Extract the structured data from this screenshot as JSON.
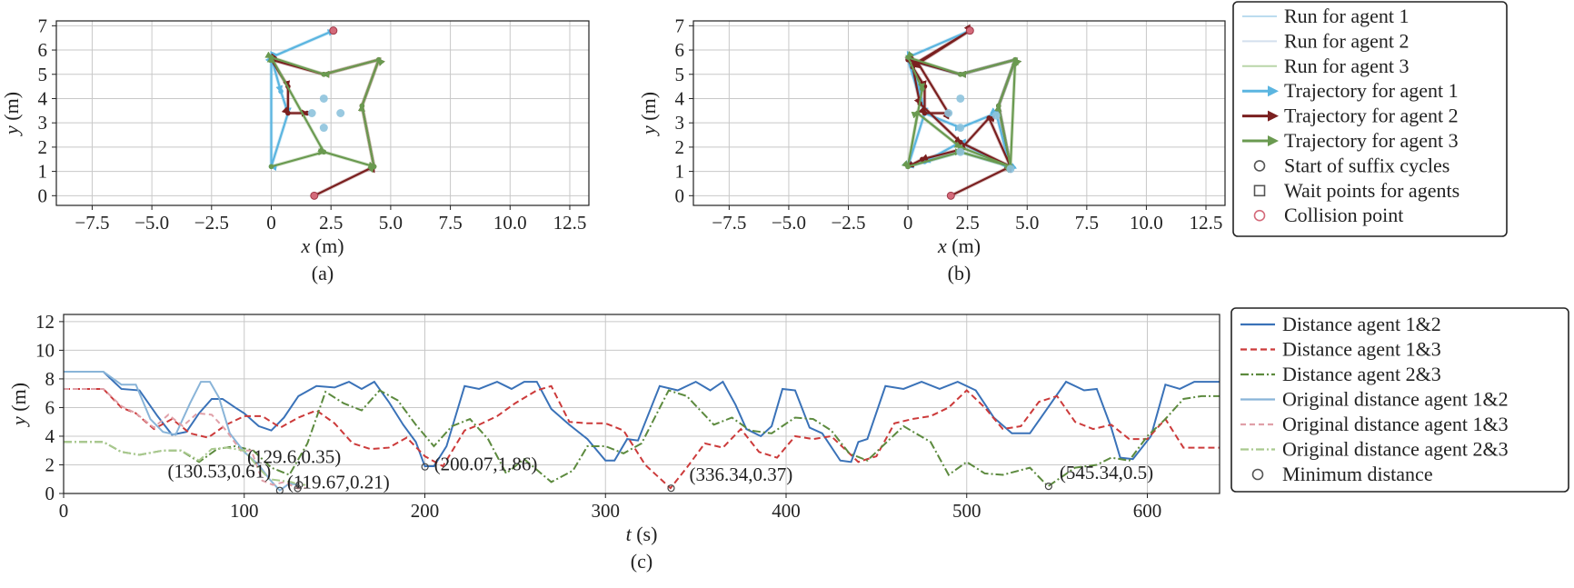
{
  "chart_data": [
    {
      "type": "line",
      "panel_label": "(a)",
      "xlabel_var": "x",
      "xlabel_unit": " (m)",
      "ylabel_var": "y",
      "ylabel_unit": " (m)",
      "xlim": [
        -9,
        13.3
      ],
      "ylim": [
        -0.4,
        7.2
      ],
      "xticks": [
        -7.5,
        -5.0,
        -2.5,
        0,
        2.5,
        5.0,
        7.5,
        10.0,
        12.5
      ],
      "xtick_labels": [
        "−7.5",
        "−5.0",
        "−2.5",
        "0",
        "2.5",
        "5.0",
        "7.5",
        "10.0",
        "12.5"
      ],
      "yticks": [
        0,
        1,
        2,
        3,
        4,
        5,
        6,
        7
      ],
      "ytick_labels": [
        "0",
        "1",
        "2",
        "3",
        "4",
        "5",
        "6",
        "7"
      ],
      "grid": true,
      "series": [
        {
          "color": "#5bb5e0",
          "x": [
            2.6,
            0,
            0.4,
            0.7,
            0,
            0,
            2.6
          ],
          "y": [
            6.8,
            5.7,
            4.3,
            3.4,
            1.2,
            5.7,
            6.8
          ]
        },
        {
          "color": "#7a1f1f",
          "x": [
            1.8,
            4.3,
            3.8,
            4.5,
            2.2,
            0,
            0.7,
            0.7,
            1.5
          ],
          "y": [
            0,
            1.2,
            3.7,
            5.6,
            5.0,
            5.6,
            4.5,
            3.4,
            3.4
          ]
        },
        {
          "color": "#6a9a50",
          "x": [
            0,
            2.2,
            4.3,
            3.8,
            4.5,
            2.2,
            0,
            0,
            2.2,
            4.3
          ],
          "y": [
            1.2,
            1.8,
            1.2,
            3.7,
            5.6,
            5.0,
            5.7,
            5.7,
            1.8,
            1.2
          ]
        }
      ],
      "markers": [
        {
          "kind": "wait",
          "color": "#8ec3dd",
          "x": [
            2.2,
            1.7,
            2.9,
            2.2
          ],
          "y": [
            4.0,
            3.4,
            3.4,
            2.8
          ]
        },
        {
          "kind": "collision",
          "color": "#d46a7a",
          "x": [
            2.6,
            1.8
          ],
          "y": [
            6.8,
            0
          ]
        }
      ]
    },
    {
      "type": "line",
      "panel_label": "(b)",
      "xlabel_var": "x",
      "xlabel_unit": " (m)",
      "ylabel_var": "y",
      "ylabel_unit": " (m)",
      "xlim": [
        -9,
        13.3
      ],
      "ylim": [
        -0.4,
        7.2
      ],
      "xticks": [
        -7.5,
        -5.0,
        -2.5,
        0,
        2.5,
        5.0,
        7.5,
        10.0,
        12.5
      ],
      "xtick_labels": [
        "−7.5",
        "−5.0",
        "−2.5",
        "0",
        "2.5",
        "5.0",
        "7.5",
        "10.0",
        "12.5"
      ],
      "yticks": [
        0,
        1,
        2,
        3,
        4,
        5,
        6,
        7
      ],
      "ytick_labels": [
        "0",
        "1",
        "2",
        "3",
        "4",
        "5",
        "6",
        "7"
      ],
      "grid": true,
      "series": [
        {
          "color": "#5bb5e0",
          "x": [
            2.6,
            0,
            0.5,
            0.7,
            0,
            2.2,
            4.3,
            3.8,
            4.5,
            2.2,
            0,
            0.7,
            2.2,
            3.7,
            4.3,
            2.2,
            0.7,
            0
          ],
          "y": [
            6.8,
            5.7,
            4.3,
            3.4,
            1.2,
            1.8,
            1.2,
            3.7,
            5.6,
            5.0,
            5.6,
            3.4,
            2.8,
            3.4,
            1.1,
            2.2,
            1.4,
            1.2
          ]
        },
        {
          "color": "#7a1f1f",
          "x": [
            1.8,
            4.3,
            3.8,
            4.5,
            2.2,
            0,
            0.7,
            0.7,
            1.7,
            0.4,
            2.6,
            0.2,
            0.5,
            2.2,
            4.3,
            3.4,
            2.2,
            0.6,
            0
          ],
          "y": [
            0,
            1.2,
            3.7,
            5.6,
            5.0,
            5.6,
            4.5,
            3.4,
            3.4,
            5.5,
            6.8,
            5.3,
            3.8,
            2.2,
            1.2,
            3.2,
            1.9,
            1.5,
            1.2
          ]
        },
        {
          "color": "#6a9a50",
          "x": [
            0,
            0.4,
            2.2,
            4.3,
            3.8,
            4.5,
            2.2,
            0,
            0.6,
            0,
            2.2,
            4.3,
            4.5
          ],
          "y": [
            1.2,
            3.4,
            2.0,
            1.2,
            3.7,
            5.6,
            5.0,
            5.7,
            4.4,
            1.2,
            1.8,
            1.2,
            5.6
          ]
        }
      ],
      "markers": [
        {
          "kind": "wait",
          "color": "#8ec3dd",
          "x": [
            2.2,
            1.7,
            2.2,
            3.7,
            4.3,
            2.2
          ],
          "y": [
            4.0,
            3.4,
            2.8,
            3.3,
            1.1,
            1.8
          ]
        },
        {
          "kind": "collision",
          "color": "#d46a7a",
          "x": [
            2.6,
            1.8
          ],
          "y": [
            6.8,
            0
          ]
        }
      ]
    },
    {
      "type": "line",
      "panel_label": "(c)",
      "xlabel_var": "t",
      "xlabel_unit": " (s)",
      "ylabel_var": "y",
      "ylabel_unit": " (m)",
      "xlim": [
        0,
        640
      ],
      "ylim": [
        0,
        12.5
      ],
      "xticks": [
        0,
        100,
        200,
        300,
        400,
        500,
        600
      ],
      "xtick_labels": [
        "0",
        "100",
        "200",
        "300",
        "400",
        "500",
        "600"
      ],
      "yticks": [
        0,
        2,
        4,
        6,
        8,
        10,
        12
      ],
      "ytick_labels": [
        "0",
        "2",
        "4",
        "6",
        "8",
        "10",
        "12"
      ],
      "grid": true,
      "series": [
        {
          "name": "Distance agent 1&2",
          "color": "#3a72b8",
          "dash": "",
          "x": [
            0,
            22,
            32,
            42,
            52,
            60,
            68,
            75,
            82,
            88,
            95,
            100,
            108,
            115,
            122,
            130,
            140,
            150,
            158,
            165,
            172,
            180,
            188,
            195,
            200,
            205,
            212,
            222,
            230,
            240,
            248,
            255,
            262,
            270,
            280,
            290,
            300,
            305,
            312,
            318,
            330,
            340,
            350,
            358,
            365,
            372,
            378,
            386,
            392,
            398,
            405,
            413,
            420,
            430,
            436,
            440,
            445,
            455,
            465,
            475,
            485,
            495,
            505,
            515,
            525,
            535,
            545,
            555,
            565,
            572,
            580,
            585,
            592,
            602,
            610,
            618,
            626,
            640
          ],
          "y": [
            8.5,
            8.5,
            7.3,
            7.2,
            5.4,
            4.1,
            4.3,
            5.6,
            6.6,
            6.6,
            6.0,
            5.6,
            4.7,
            4.4,
            5.3,
            6.8,
            7.5,
            7.4,
            7.8,
            7.3,
            7.8,
            6.4,
            4.8,
            3.6,
            1.9,
            1.9,
            3.3,
            7.5,
            7.3,
            7.8,
            7.3,
            7.8,
            7.8,
            5.9,
            4.8,
            3.8,
            2.3,
            2.3,
            3.8,
            3.7,
            7.5,
            7.2,
            7.8,
            7.2,
            7.8,
            6.2,
            4.5,
            4.0,
            4.7,
            7.3,
            7.2,
            4.6,
            4.2,
            2.3,
            2.2,
            3.6,
            3.8,
            7.5,
            7.3,
            7.8,
            7.3,
            7.8,
            7.2,
            5.3,
            4.2,
            4.2,
            6.0,
            7.8,
            7.2,
            7.3,
            4.6,
            2.5,
            2.4,
            4.0,
            7.6,
            7.3,
            7.8,
            7.8
          ]
        },
        {
          "name": "Distance agent 1&3",
          "color": "#cc3a3a",
          "dash": "7,4",
          "x": [
            0,
            22,
            32,
            40,
            50,
            60,
            70,
            80,
            90,
            100,
            110,
            120,
            130,
            140,
            150,
            160,
            170,
            180,
            190,
            200,
            210,
            222,
            230,
            240,
            250,
            262,
            270,
            280,
            290,
            300,
            310,
            322,
            336,
            345,
            355,
            365,
            375,
            385,
            395,
            405,
            415,
            425,
            440,
            450,
            460,
            470,
            480,
            490,
            500,
            510,
            520,
            530,
            540,
            550,
            560,
            570,
            580,
            590,
            600,
            610,
            620,
            640
          ],
          "y": [
            7.3,
            7.3,
            6.0,
            5.6,
            4.5,
            5.2,
            4.2,
            3.9,
            4.8,
            5.4,
            5.4,
            4.6,
            5.3,
            5.8,
            4.9,
            3.5,
            3.1,
            3.2,
            3.9,
            2.6,
            1.9,
            4.4,
            4.8,
            5.4,
            6.3,
            7.2,
            7.5,
            5.0,
            4.9,
            4.9,
            4.4,
            2.0,
            0.37,
            1.8,
            3.5,
            3.2,
            4.5,
            2.9,
            2.5,
            4.0,
            3.8,
            4.0,
            2.2,
            2.6,
            4.9,
            5.2,
            5.4,
            6.0,
            7.2,
            6.0,
            4.5,
            4.7,
            6.4,
            6.8,
            5.0,
            4.5,
            4.8,
            3.8,
            3.8,
            5.2,
            3.2,
            3.2
          ]
        },
        {
          "name": "Distance agent 2&3",
          "color": "#5c8a3e",
          "dash": "9,3,2,3",
          "x": [
            0,
            22,
            32,
            42,
            55,
            65,
            75,
            85,
            95,
            105,
            115,
            125,
            135,
            145,
            155,
            165,
            175,
            185,
            195,
            205,
            215,
            225,
            235,
            245,
            255,
            270,
            282,
            290,
            300,
            310,
            320,
            335,
            345,
            360,
            370,
            380,
            392,
            405,
            415,
            425,
            435,
            445,
            455,
            465,
            480,
            490,
            500,
            510,
            520,
            535,
            545,
            560,
            572,
            580,
            590,
            600,
            610,
            620,
            630,
            640
          ],
          "y": [
            3.6,
            3.6,
            2.9,
            2.7,
            3.0,
            3.0,
            2.2,
            3.1,
            3.3,
            3.0,
            1.8,
            1.3,
            3.5,
            7.1,
            6.3,
            5.8,
            7.2,
            6.5,
            4.8,
            3.3,
            4.7,
            5.2,
            3.8,
            1.4,
            2.4,
            0.8,
            1.6,
            3.3,
            3.3,
            2.8,
            3.5,
            7.2,
            6.8,
            4.8,
            5.3,
            4.4,
            4.2,
            5.3,
            5.2,
            4.4,
            2.8,
            2.3,
            3.5,
            4.7,
            3.6,
            1.3,
            2.2,
            1.4,
            1.3,
            1.8,
            0.5,
            1.8,
            2.0,
            2.5,
            2.3,
            4.0,
            5.2,
            6.6,
            6.8,
            6.8
          ]
        },
        {
          "name": "Original distance agent 1&2",
          "color": "#89b4d8",
          "dash": "",
          "x": [
            0,
            22,
            32,
            40,
            48,
            55,
            62,
            70,
            76,
            81,
            86,
            92,
            100,
            108,
            114,
            119.67,
            125,
            130
          ],
          "y": [
            8.5,
            8.5,
            7.6,
            7.6,
            5.2,
            4.3,
            4.1,
            6.3,
            7.8,
            7.8,
            6.7,
            4.2,
            2.9,
            2.0,
            1.0,
            0.21,
            0.7,
            0.6
          ]
        },
        {
          "name": "Original distance agent 1&3",
          "color": "#e0a0a8",
          "dash": "6,4",
          "x": [
            0,
            22,
            32,
            40,
            50,
            58,
            66,
            74,
            82,
            90,
            98,
            104,
            110,
            116,
            122,
            129.6,
            134
          ],
          "y": [
            7.3,
            7.3,
            6.1,
            5.6,
            4.6,
            5.5,
            4.7,
            5.6,
            5.5,
            4.4,
            3.0,
            3.0,
            0.9,
            0.6,
            0.8,
            0.35,
            0.4
          ]
        },
        {
          "name": "Original distance agent 2&3",
          "color": "#a9c98e",
          "dash": "9,3,2,3",
          "x": [
            0,
            22,
            32,
            42,
            55,
            65,
            75,
            82,
            90,
            100,
            108,
            114,
            120,
            126,
            130.53,
            134
          ],
          "y": [
            3.6,
            3.6,
            2.9,
            2.7,
            3.0,
            3.0,
            2.3,
            3.1,
            3.2,
            3.0,
            1.8,
            1.0,
            0.9,
            0.8,
            0.61,
            0.6
          ]
        }
      ],
      "minimum_points": [
        {
          "x": 119.67,
          "y": 0.21,
          "label": "(119.67,0.21)"
        },
        {
          "x": 129.6,
          "y": 0.35,
          "label": "(129.6,0.35)"
        },
        {
          "x": 130.53,
          "y": 0.61,
          "label": "(130.53,0.61)"
        },
        {
          "x": 200.07,
          "y": 1.86,
          "label": "(200.07,1.86)"
        },
        {
          "x": 336.34,
          "y": 0.37,
          "label": "(336.34,0.37)"
        },
        {
          "x": 545.34,
          "y": 0.5,
          "label": "(545.34,0.5)"
        }
      ]
    }
  ],
  "legend_top": {
    "entries": [
      {
        "kind": "thin",
        "color": "#bcdcef",
        "label": "Run for agent 1"
      },
      {
        "kind": "thin",
        "color": "#d4dfee",
        "label": "Run for agent 2"
      },
      {
        "kind": "thin",
        "color": "#b9d6a8",
        "label": "Run for agent 3"
      },
      {
        "kind": "arrow",
        "color": "#5bb5e0",
        "label": "Trajectory for agent 1"
      },
      {
        "kind": "arrow",
        "color": "#7a1f1f",
        "label": "Trajectory for agent 2"
      },
      {
        "kind": "arrow",
        "color": "#6a9a50",
        "label": "Trajectory for agent 3"
      },
      {
        "kind": "circle",
        "color": "#555555",
        "label": "Start of suffix cycles"
      },
      {
        "kind": "square",
        "color": "#555555",
        "label": "Wait points for agents"
      },
      {
        "kind": "circle",
        "color": "#d46a7a",
        "label": "Collision point"
      }
    ]
  },
  "legend_bottom": {
    "entries": [
      {
        "kind": "line",
        "color": "#3a72b8",
        "dash": "",
        "label": "Distance agent 1&2"
      },
      {
        "kind": "line",
        "color": "#cc3a3a",
        "dash": "7,4",
        "label": "Distance agent 1&3"
      },
      {
        "kind": "line",
        "color": "#5c8a3e",
        "dash": "9,3,2,3",
        "label": "Distance agent 2&3"
      },
      {
        "kind": "line",
        "color": "#89b4d8",
        "dash": "",
        "label": "Original distance agent 1&2"
      },
      {
        "kind": "line",
        "color": "#e0a0a8",
        "dash": "6,4",
        "label": "Original distance agent 1&3"
      },
      {
        "kind": "line",
        "color": "#a9c98e",
        "dash": "9,3,2,3",
        "label": "Original distance agent 2&3"
      },
      {
        "kind": "circle",
        "color": "#555555",
        "dash": "",
        "label": "Minimum distance"
      }
    ]
  }
}
